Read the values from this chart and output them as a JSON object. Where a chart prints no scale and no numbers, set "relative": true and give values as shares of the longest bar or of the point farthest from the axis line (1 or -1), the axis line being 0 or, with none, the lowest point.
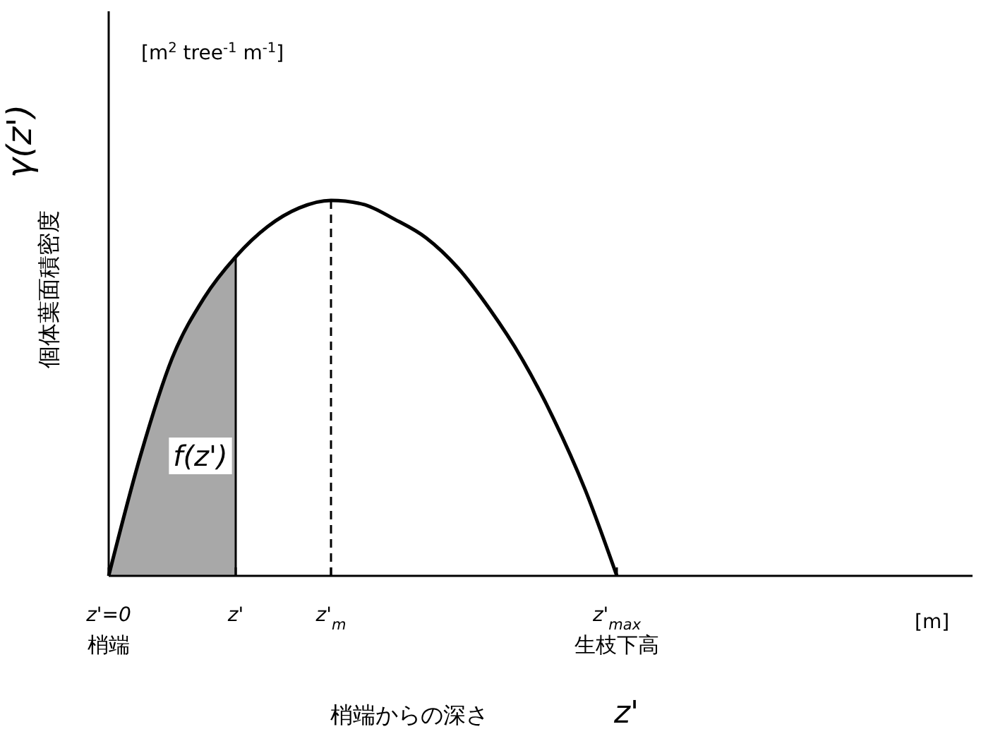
{
  "chart_data": {
    "type": "line",
    "relative": true,
    "ylabel": "個体葉面積密度",
    "xlabel": "梢端からの深さ",
    "categories": [
      "z'=0",
      null,
      null,
      null,
      "z'",
      null,
      null,
      "z'$_{m}$",
      null,
      null,
      null,
      null,
      null,
      null,
      null,
      null,
      "z'$_{max}$",
      null,
      null,
      null,
      null,
      null,
      null,
      null,
      null,
      null,
      null,
      null
    ],
    "series": [
      {
        "type": "area",
        "color": "#a8a8a8",
        "values": [
          0,
          0.32,
          0.58,
          0.74,
          0.85,
          null,
          null,
          null,
          null,
          null,
          null,
          null,
          null,
          null,
          null,
          null,
          null,
          null,
          null,
          null,
          null,
          null,
          null,
          null,
          null,
          null,
          null,
          null
        ]
      },
      {
        "color": "#000000",
        "values": [
          0,
          0.32,
          0.58,
          0.74,
          0.85,
          0.93,
          0.98,
          1,
          0.99,
          0.95,
          0.9,
          0.82,
          0.71,
          0.58,
          0.42,
          0.23,
          0,
          null,
          null,
          null,
          null,
          null,
          null,
          null,
          null,
          null,
          null,
          null
        ]
      }
    ],
    "ref_lines": [
      {
        "axis": "x",
        "value": "z'$_{m}$",
        "line_style": "dashed",
        "color": "#000000"
      }
    ],
    "annotations": [
      "γ(z')",
      "[m$^{2}$ tree$^{-1}$ m$^{-1}$]",
      "[m]",
      "z'",
      "f(z')",
      {
        "text": "梢端",
        "x": "z'=0",
        "y": 0
      },
      {
        "text": "生枝下高",
        "x": "z'$_{max}$",
        "y": 0
      }
    ]
  }
}
